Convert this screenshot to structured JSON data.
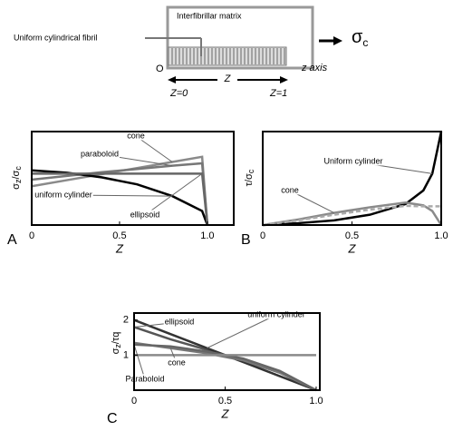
{
  "diagram": {
    "matrix_label": "Interfibrillar matrix",
    "fibril_label": "Uniform cylindrical fibril",
    "origin": "O",
    "z": "Z",
    "z0": "Z=0",
    "z1": "Z=1",
    "axis_label": "z axis",
    "stress": {
      "main": "σ",
      "sub": "c"
    }
  },
  "chart_data": [
    {
      "type": "line",
      "panel": "A",
      "xlabel": "Z",
      "ylabel": [
        "σ",
        "z",
        "/σ",
        "c"
      ],
      "x": [
        0,
        0.2,
        0.4,
        0.6,
        0.8,
        0.97,
        1.0
      ],
      "xlim": [
        0,
        1.15
      ],
      "ylim": [
        0,
        2
      ],
      "xticks": [
        0,
        0.5,
        {
          "value": 1,
          "label": "1.0"
        }
      ],
      "series": [
        {
          "name": "cone",
          "color": "#8a8a8a",
          "values": [
            0.83,
            0.96,
            1.09,
            1.22,
            1.35,
            1.46,
            0
          ]
        },
        {
          "name": "paraboloid",
          "color": "#777777",
          "values": [
            0.97,
            1.05,
            1.13,
            1.2,
            1.27,
            1.32,
            0
          ]
        },
        {
          "name": "uniform cylinder",
          "color": "#000000",
          "values": [
            1.17,
            1.12,
            1.02,
            0.87,
            0.62,
            0.3,
            0
          ]
        },
        {
          "name": "ellipsoid",
          "color": "#666666",
          "values": [
            1.1,
            1.1,
            1.1,
            1.1,
            1.1,
            1.1,
            0
          ]
        }
      ]
    },
    {
      "type": "line",
      "panel": "B",
      "xlabel": "Z",
      "ylabel": [
        "τ/σ",
        "c"
      ],
      "x": [
        0,
        0.2,
        0.4,
        0.6,
        0.8,
        0.9,
        0.95,
        1.0
      ],
      "xlim": [
        0,
        1
      ],
      "ylim": [
        0,
        2
      ],
      "xticks": [
        0,
        0.5,
        {
          "value": 1,
          "label": "1.0"
        }
      ],
      "series": [
        {
          "name": "Uniform cylinder",
          "color": "#000000",
          "values": [
            0,
            0.04,
            0.1,
            0.22,
            0.45,
            0.74,
            1.1,
            2.0
          ]
        },
        {
          "name": "cone",
          "color": "#8a8a8a",
          "values": [
            0,
            0.12,
            0.26,
            0.38,
            0.48,
            0.42,
            0.3,
            0
          ]
        },
        {
          "color": "#aaaaaa",
          "dash": true,
          "values": [
            0,
            0.1,
            0.22,
            0.33,
            0.41,
            0.4,
            0.4,
            0.4
          ]
        }
      ]
    },
    {
      "type": "line",
      "panel": "C",
      "xlabel": "Z",
      "ylabel": [
        "σ",
        "z",
        "/τq"
      ],
      "x": [
        0,
        0.2,
        0.4,
        0.6,
        0.8,
        1.0
      ],
      "xlim": [
        0,
        1.02
      ],
      "ylim": [
        0,
        2.2
      ],
      "xticks": [
        0,
        0.5,
        {
          "value": 1,
          "label": "1.0"
        }
      ],
      "yticks": [
        1,
        2
      ],
      "series": [
        {
          "name": "ellipsoid",
          "color": "#555555",
          "values": [
            1.8,
            1.45,
            1.15,
            0.85,
            0.5,
            0
          ]
        },
        {
          "name": "uniform cylinder",
          "color": "#333333",
          "values": [
            2,
            1.6,
            1.2,
            0.8,
            0.4,
            0
          ]
        },
        {
          "name": "cone",
          "color": "#777777",
          "values": [
            1.35,
            1.2,
            1.05,
            0.85,
            0.5,
            0
          ]
        },
        {
          "name": "Paraboloid",
          "color": "#666666",
          "values": [
            1.3,
            1.25,
            1.1,
            0.9,
            0.55,
            0
          ]
        },
        {
          "color": "#8a8a8a",
          "values": [
            1,
            1,
            1,
            1,
            1,
            1
          ]
        }
      ]
    }
  ]
}
